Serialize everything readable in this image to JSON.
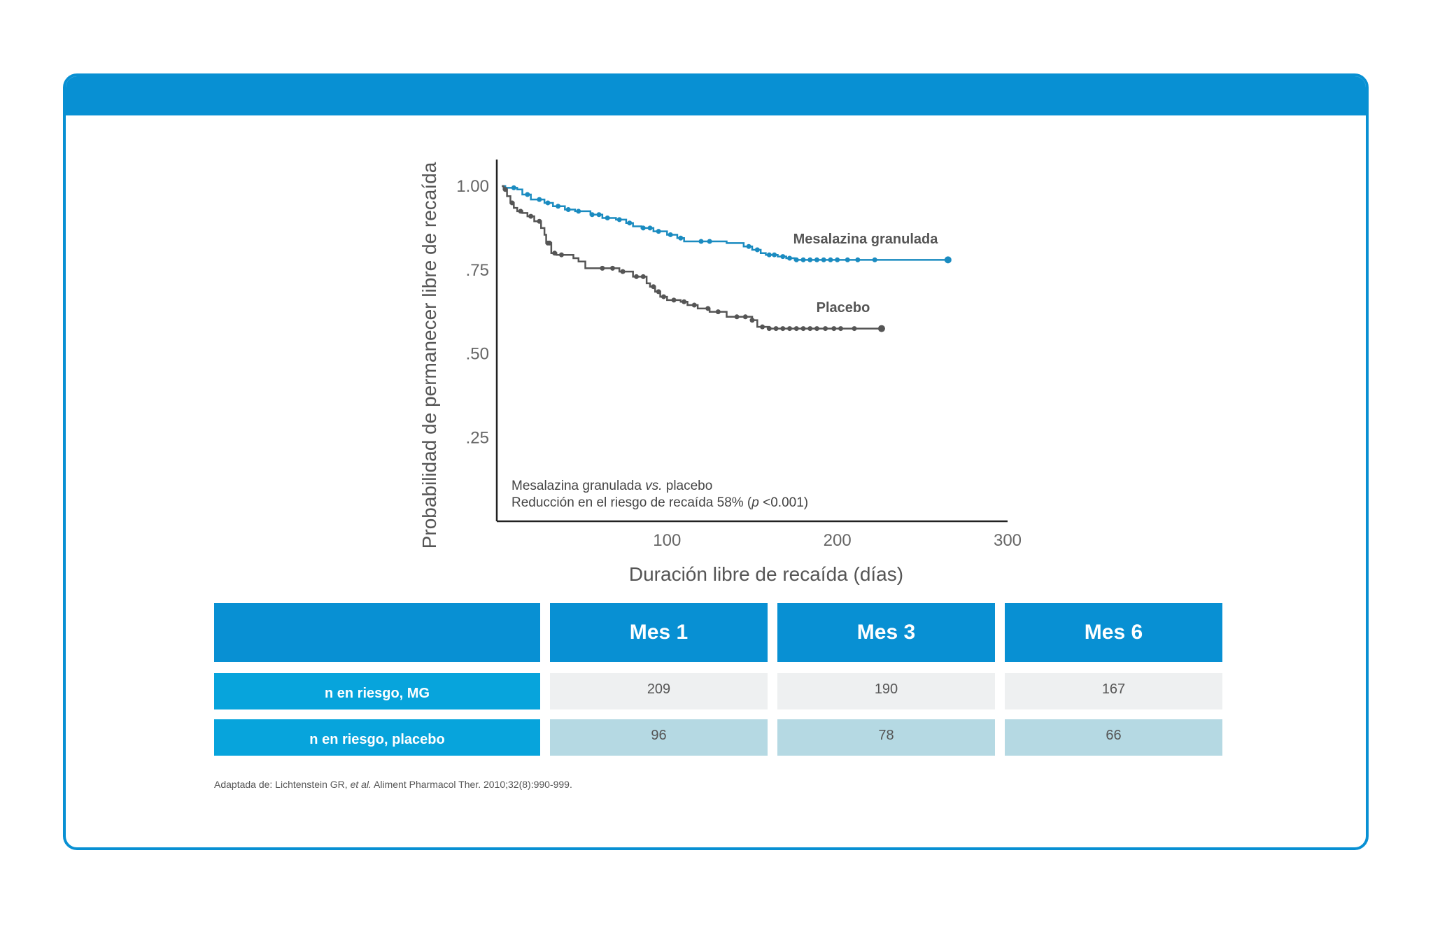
{
  "chart_data": {
    "type": "line",
    "xlabel": "Duración libre de recaída (días)",
    "ylabel": "Probabilidad de permanecer libre de recaída",
    "xlim": [
      0,
      300
    ],
    "ylim": [
      0,
      1.07
    ],
    "x_ticks": [
      100,
      200,
      300
    ],
    "x_tick_labels": [
      "100",
      "200",
      "300"
    ],
    "y_ticks": [
      1.0,
      0.75,
      0.5,
      0.25
    ],
    "y_tick_labels": [
      "1.00",
      ".75",
      ".50",
      ".25"
    ],
    "grid": false,
    "annotation_line1_a": "Mesalazina granulada ",
    "annotation_line1_b": "vs.",
    "annotation_line1_c": " placebo",
    "annotation_line2_a": "Reducción en el riesgo de recaída 58% (",
    "annotation_line2_b": "p",
    "annotation_line2_c": " <0.001)",
    "series": [
      {
        "name": "Mesalazina granulada",
        "color": "#1a8bc0",
        "x": [
          3,
          5,
          12,
          15,
          20,
          28,
          33,
          40,
          46,
          55,
          62,
          70,
          76,
          80,
          85,
          92,
          100,
          106,
          110,
          120,
          135,
          145,
          150,
          155,
          158,
          165,
          170,
          175,
          185,
          200,
          265
        ],
        "y": [
          1.0,
          0.995,
          0.99,
          0.975,
          0.96,
          0.95,
          0.94,
          0.93,
          0.925,
          0.915,
          0.905,
          0.9,
          0.89,
          0.88,
          0.875,
          0.865,
          0.855,
          0.845,
          0.835,
          0.835,
          0.83,
          0.82,
          0.81,
          0.8,
          0.795,
          0.79,
          0.785,
          0.78,
          0.78,
          0.78,
          0.78
        ],
        "censored_x": [
          10,
          18,
          25,
          30,
          36,
          42,
          48,
          56,
          60,
          65,
          72,
          78,
          86,
          90,
          95,
          102,
          108,
          120,
          125,
          148,
          153,
          160,
          163,
          168,
          172,
          176,
          180,
          184,
          188,
          192,
          196,
          200,
          206,
          212,
          222,
          265
        ]
      },
      {
        "name": "Placebo",
        "color": "#555555",
        "x": [
          3,
          4,
          6,
          8,
          10,
          12,
          15,
          18,
          22,
          26,
          28,
          29,
          32,
          35,
          45,
          48,
          52,
          60,
          65,
          72,
          80,
          88,
          90,
          93,
          96,
          100,
          108,
          112,
          118,
          125,
          135,
          145,
          150,
          153,
          160,
          170,
          180,
          226
        ],
        "y": [
          1.0,
          0.99,
          0.97,
          0.95,
          0.935,
          0.925,
          0.92,
          0.91,
          0.895,
          0.875,
          0.855,
          0.83,
          0.8,
          0.795,
          0.785,
          0.775,
          0.755,
          0.755,
          0.755,
          0.745,
          0.73,
          0.71,
          0.7,
          0.685,
          0.67,
          0.66,
          0.655,
          0.645,
          0.635,
          0.625,
          0.61,
          0.61,
          0.6,
          0.58,
          0.575,
          0.575,
          0.575,
          0.575
        ],
        "censored_x": [
          5,
          9,
          14,
          20,
          25,
          30,
          31,
          34,
          38,
          62,
          68,
          74,
          82,
          86,
          92,
          95,
          98,
          104,
          110,
          116,
          124,
          130,
          141,
          146,
          150,
          156,
          160,
          164,
          168,
          172,
          176,
          180,
          184,
          188,
          193,
          198,
          202,
          210,
          226
        ]
      }
    ]
  },
  "table": {
    "headers": [
      "",
      "Mes 1",
      "Mes 3",
      "Mes 6"
    ],
    "rows": [
      {
        "label": "n en riesgo, MG",
        "values": [
          "209",
          "190",
          "167"
        ]
      },
      {
        "label": "n en riesgo, placebo",
        "values": [
          "96",
          "78",
          "66"
        ]
      }
    ]
  },
  "source": {
    "prefix": "Adaptada de: Lichtenstein GR, ",
    "etal": "et al.",
    "suffix": " Aliment Pharmacol Ther. 2010;32(8):990-999."
  },
  "colors": {
    "brand": "#0890d3",
    "row_label": "#07a4dc",
    "mg_series": "#1a8bc0",
    "placebo_series": "#555555"
  }
}
